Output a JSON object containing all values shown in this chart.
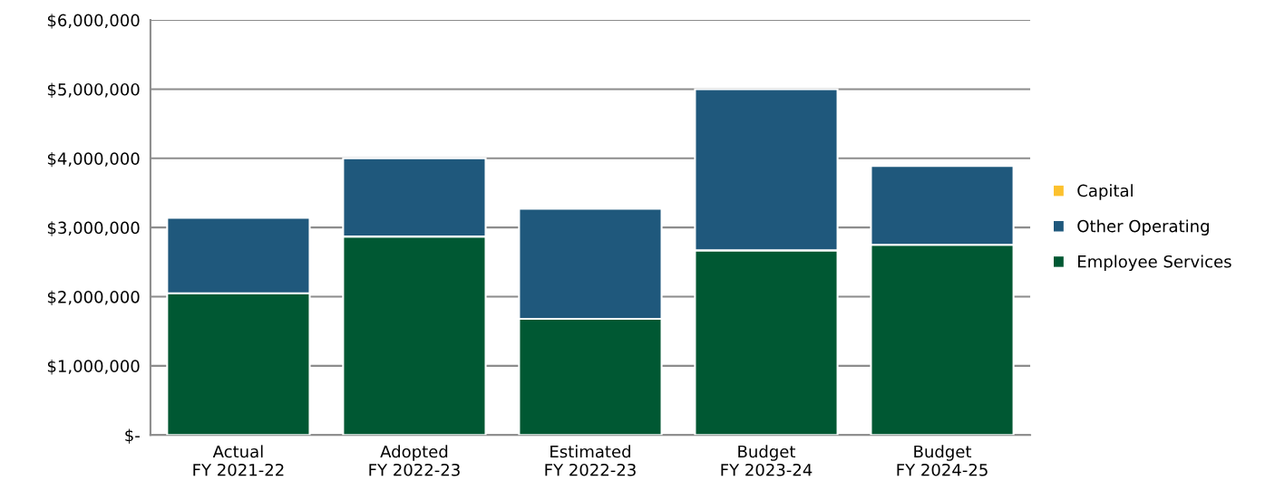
{
  "chart_data": {
    "type": "bar",
    "stacked": true,
    "categories": [
      "Actual\nFY 2021-22",
      "Adopted\nFY 2022-23",
      "Estimated\nFY 2022-23",
      "Budget\nFY 2023-24",
      "Budget\nFY 2024-25"
    ],
    "series": [
      {
        "name": "Employee Services",
        "color": "#005833",
        "values": [
          2050000,
          2870000,
          1680000,
          2670000,
          2750000
        ]
      },
      {
        "name": "Other Operating",
        "color": "#1f587c",
        "values": [
          1090000,
          1130000,
          1590000,
          2330000,
          1140000
        ]
      },
      {
        "name": "Capital",
        "color": "#fcc12e",
        "values": [
          0,
          0,
          0,
          0,
          0
        ]
      }
    ],
    "ylim": [
      0,
      6000000
    ],
    "yticks": [
      {
        "value": 0,
        "label": "$-"
      },
      {
        "value": 1000000,
        "label": "$1,000,000"
      },
      {
        "value": 2000000,
        "label": "$2,000,000"
      },
      {
        "value": 3000000,
        "label": "$3,000,000"
      },
      {
        "value": 4000000,
        "label": "$4,000,000"
      },
      {
        "value": 5000000,
        "label": "$5,000,000"
      },
      {
        "value": 6000000,
        "label": "$6,000,000"
      }
    ],
    "grid": "y",
    "legend": "right"
  }
}
